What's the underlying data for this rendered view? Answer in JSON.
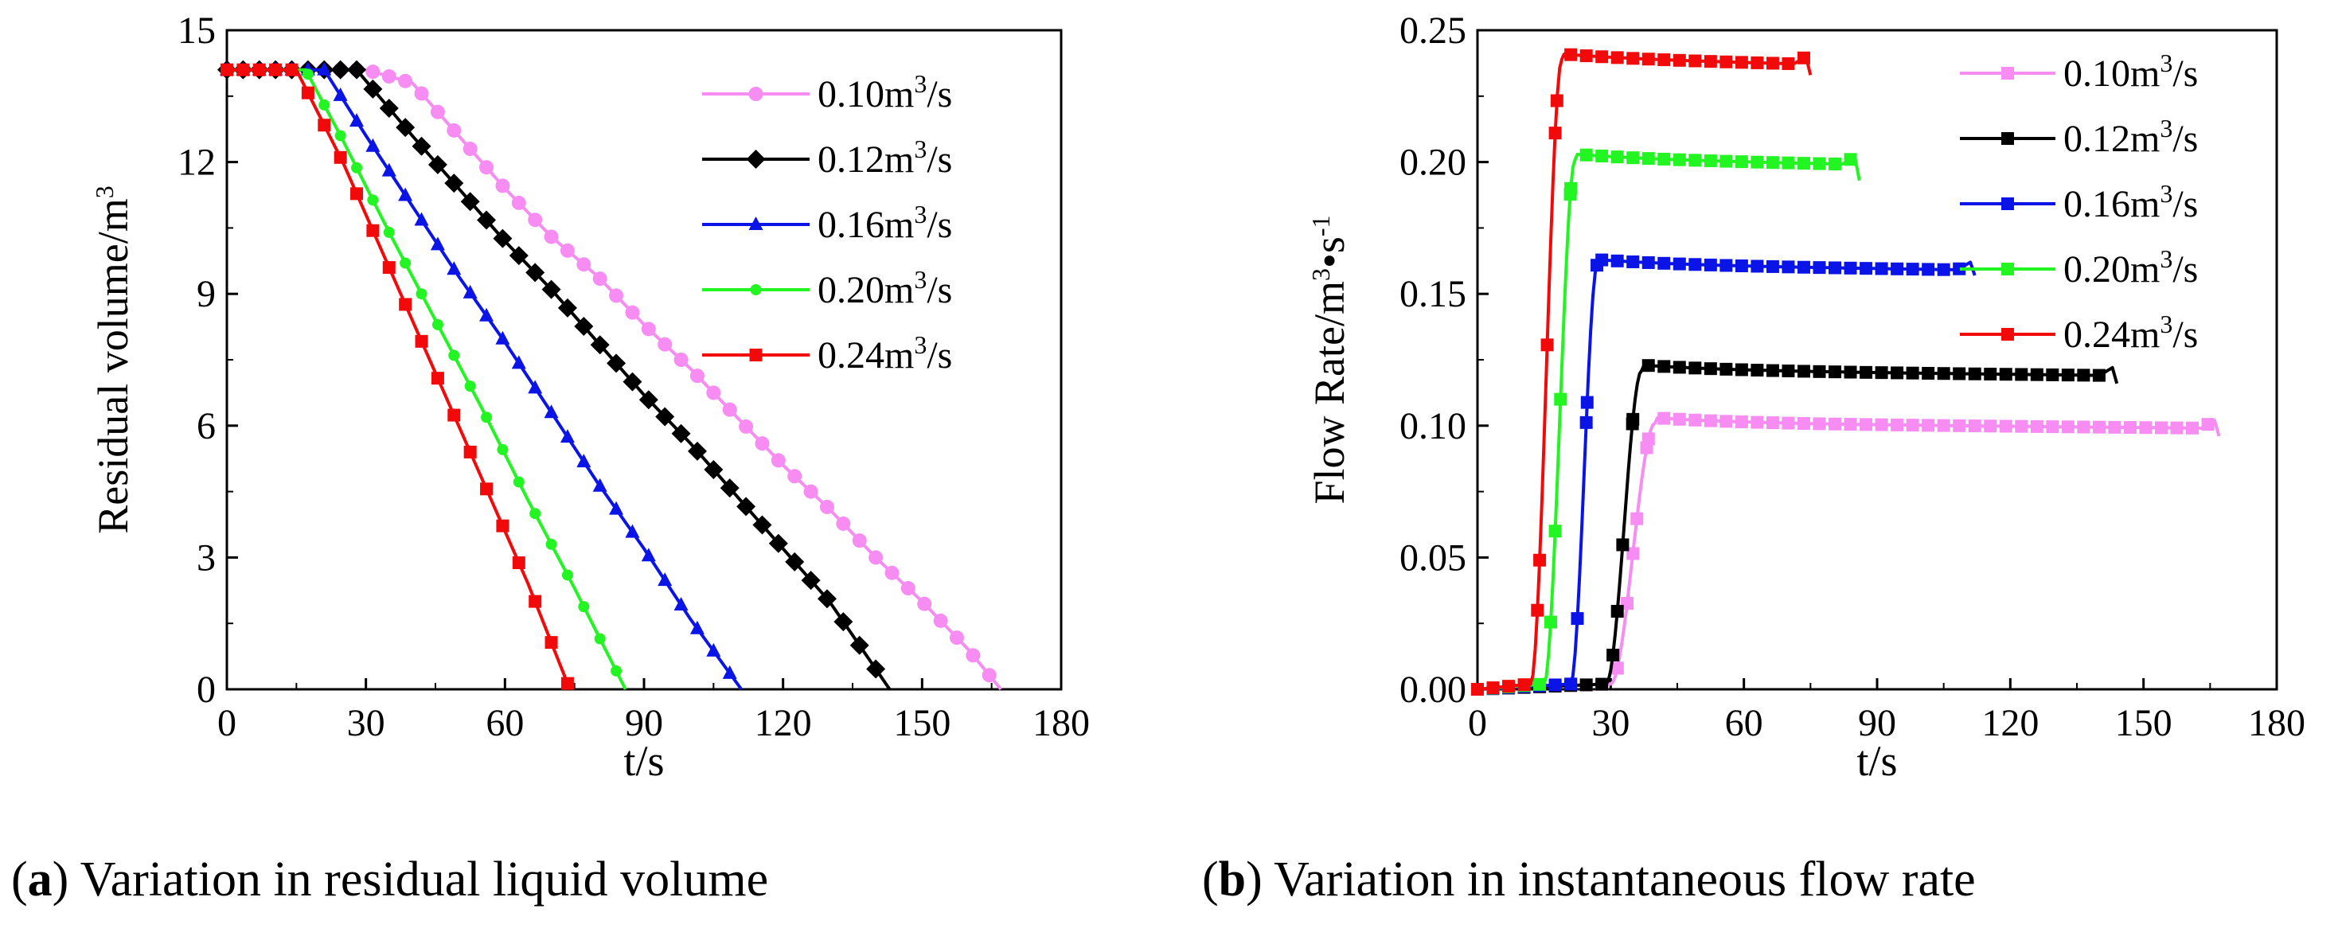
{
  "chart_data": [
    {
      "id": "a",
      "type": "line",
      "xlabel": "t/s",
      "ylabel": "Residual volume/m³",
      "ylabel_parts": [
        "Residual volume/m",
        "3"
      ],
      "xlim": [
        0,
        180
      ],
      "ylim": [
        0,
        15
      ],
      "xticks": [
        0,
        30,
        60,
        90,
        120,
        150,
        180
      ],
      "yticks": [
        0,
        3,
        6,
        9,
        12,
        15
      ],
      "legend_position": "top-right",
      "series": [
        {
          "name": "0.10m³/s",
          "label_base": "0.10m",
          "label_sup": "3",
          "label_tail": "/s",
          "color": "#f78cf3",
          "marker": "circle",
          "x0": 0,
          "t_start": 30,
          "t_end": 167,
          "v0": 14.1,
          "x": [
            0,
            30,
            40,
            50,
            60,
            70,
            80,
            90,
            100,
            110,
            120,
            130,
            140,
            150,
            160,
            167
          ],
          "y": [
            14.1,
            14.1,
            13.8,
            12.6,
            11.4,
            10.3,
            9.4,
            8.3,
            7.3,
            6.2,
            5.1,
            4.1,
            3.0,
            2.0,
            0.9,
            0
          ]
        },
        {
          "name": "0.12m³/s",
          "label_base": "0.12m",
          "label_sup": "3",
          "label_tail": "/s",
          "color": "#000000",
          "marker": "diamond",
          "x0": 0,
          "t_start": 28,
          "t_end": 143,
          "v0": 14.1,
          "x": [
            0,
            28,
            40,
            50,
            60,
            70,
            80,
            90,
            100,
            110,
            120,
            130,
            143
          ],
          "y": [
            14.1,
            14.1,
            12.6,
            11.4,
            10.2,
            9.1,
            7.9,
            6.7,
            5.6,
            4.4,
            3.2,
            2.0,
            0
          ]
        },
        {
          "name": "0.16m³/s",
          "label_base": "0.16m",
          "label_sup": "3",
          "label_tail": "/s",
          "color": "#0a14e6",
          "marker": "triangle",
          "x0": 0,
          "t_start": 21,
          "t_end": 111,
          "v0": 14.1,
          "x": [
            0,
            21,
            30,
            40,
            50,
            60,
            70,
            80,
            90,
            100,
            111
          ],
          "y": [
            14.1,
            14.1,
            12.6,
            11.0,
            9.4,
            7.9,
            6.3,
            4.7,
            3.2,
            1.6,
            0
          ]
        },
        {
          "name": "0.20m³/s",
          "label_base": "0.20m",
          "label_sup": "3",
          "label_tail": "/s",
          "color": "#22f522",
          "marker": "circle-small",
          "x0": 0,
          "t_start": 17,
          "t_end": 86,
          "v0": 14.1,
          "x": [
            0,
            17,
            25,
            35,
            45,
            55,
            65,
            75,
            86
          ],
          "y": [
            14.1,
            14.1,
            12.5,
            10.4,
            8.4,
            6.4,
            4.3,
            2.3,
            0
          ]
        },
        {
          "name": "0.24m³/s",
          "label_base": "0.24m",
          "label_sup": "3",
          "label_tail": "/s",
          "color": "#f20a0a",
          "marker": "square",
          "x0": 0,
          "t_start": 15,
          "t_end": 74,
          "v0": 14.1,
          "x": [
            0,
            15,
            25,
            35,
            45,
            55,
            65,
            74
          ],
          "y": [
            14.1,
            14.1,
            12.0,
            9.6,
            7.2,
            4.8,
            2.4,
            0
          ]
        }
      ]
    },
    {
      "id": "b",
      "type": "line",
      "xlabel": "t/s",
      "ylabel": "Flow Rate/m³•s⁻¹",
      "ylabel_parts": [
        "Flow Rate/m",
        "3",
        "•s",
        "-1"
      ],
      "xlim": [
        0,
        180
      ],
      "ylim": [
        0,
        0.25
      ],
      "xticks": [
        0,
        30,
        60,
        90,
        120,
        150,
        180
      ],
      "yticks": [
        0.0,
        0.05,
        0.1,
        0.15,
        0.2,
        0.25
      ],
      "ytick_labels": [
        "0.00",
        "0.05",
        "0.10",
        "0.15",
        "0.20",
        "0.25"
      ],
      "legend_position": "top-right",
      "series": [
        {
          "name": "0.10m³/s",
          "label_base": "0.10m",
          "label_sup": "3",
          "label_tail": "/s",
          "color": "#f78cf3",
          "marker": "square",
          "rise_start": 30,
          "rise_end": 40,
          "plateau": 0.101,
          "t_end": 167,
          "end_value": 0.096
        },
        {
          "name": "0.12m³/s",
          "label_base": "0.12m",
          "label_sup": "3",
          "label_tail": "/s",
          "color": "#000000",
          "marker": "square",
          "rise_start": 29,
          "rise_end": 37,
          "plateau": 0.121,
          "t_end": 144,
          "end_value": 0.116
        },
        {
          "name": "0.16m³/s",
          "label_base": "0.16m",
          "label_sup": "3",
          "label_tail": "/s",
          "color": "#0a14e6",
          "marker": "square",
          "rise_start": 21,
          "rise_end": 27,
          "plateau": 0.161,
          "t_end": 112,
          "end_value": 0.157
        },
        {
          "name": "0.20m³/s",
          "label_base": "0.20m",
          "label_sup": "3",
          "label_tail": "/s",
          "color": "#22f522",
          "marker": "square",
          "rise_start": 15,
          "rise_end": 22,
          "plateau": 0.201,
          "t_end": 86,
          "end_value": 0.193
        },
        {
          "name": "0.24m³/s",
          "label_base": "0.24m",
          "label_sup": "3",
          "label_tail": "/s",
          "color": "#f20a0a",
          "marker": "square",
          "rise_start": 12,
          "rise_end": 19,
          "plateau": 0.239,
          "t_end": 75,
          "end_value": 0.233
        }
      ]
    }
  ],
  "captions": {
    "a": {
      "letter": "a",
      "text": "Variation in residual liquid volume"
    },
    "b": {
      "letter": "b",
      "text": "Variation in instantaneous flow rate"
    }
  }
}
